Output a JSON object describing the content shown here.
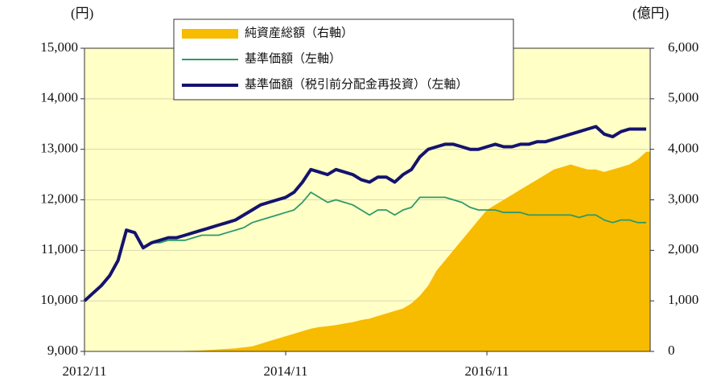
{
  "chart_data": {
    "type": "line",
    "y_axis_title": "(円)",
    "y2_axis_title": "(億円)",
    "x": [
      "2012/11",
      "2012/12",
      "2013/01",
      "2013/02",
      "2013/03",
      "2013/04",
      "2013/05",
      "2013/06",
      "2013/07",
      "2013/08",
      "2013/09",
      "2013/10",
      "2013/11",
      "2013/12",
      "2014/01",
      "2014/02",
      "2014/03",
      "2014/04",
      "2014/05",
      "2014/06",
      "2014/07",
      "2014/08",
      "2014/09",
      "2014/10",
      "2014/11",
      "2014/12",
      "2015/01",
      "2015/02",
      "2015/03",
      "2015/04",
      "2015/05",
      "2015/06",
      "2015/07",
      "2015/08",
      "2015/09",
      "2015/10",
      "2015/11",
      "2015/12",
      "2016/01",
      "2016/02",
      "2016/03",
      "2016/04",
      "2016/05",
      "2016/06",
      "2016/07",
      "2016/08",
      "2016/09",
      "2016/10",
      "2016/11",
      "2016/12",
      "2017/01",
      "2017/02",
      "2017/03",
      "2017/04",
      "2017/05",
      "2017/06",
      "2017/07",
      "2017/08",
      "2017/09",
      "2017/10",
      "2017/11",
      "2017/12",
      "2018/01",
      "2018/02",
      "2018/03",
      "2018/04",
      "2018/05",
      "2018/06"
    ],
    "xticks": [
      "2012/11",
      "2014/11",
      "2016/11"
    ],
    "ylim": [
      9000,
      15000
    ],
    "yticks": [
      {
        "value": 9000,
        "label": "9,000"
      },
      {
        "value": 10000,
        "label": "10,000"
      },
      {
        "value": 11000,
        "label": "11,000"
      },
      {
        "value": 12000,
        "label": "12,000"
      },
      {
        "value": 13000,
        "label": "13,000"
      },
      {
        "value": 14000,
        "label": "14,000"
      },
      {
        "value": 15000,
        "label": "15,000"
      }
    ],
    "y2lim": [
      0,
      6000
    ],
    "y2ticks": [
      0,
      {
        "value": 1000,
        "label": "1,000"
      },
      {
        "value": 2000,
        "label": "2,000"
      },
      {
        "value": 3000,
        "label": "3,000"
      },
      {
        "value": 4000,
        "label": "4,000"
      },
      {
        "value": 5000,
        "label": "5,000"
      },
      {
        "value": 6000,
        "label": "6,000"
      }
    ],
    "grid": true,
    "legend": "top",
    "series": [
      {
        "name": "純資産総額（右軸）",
        "color": "#f7bb00",
        "axis": "y2",
        "kind": "area",
        "values": [
          0,
          0,
          0,
          0,
          0,
          0,
          0,
          0,
          0,
          0,
          0,
          5,
          10,
          15,
          20,
          30,
          40,
          50,
          60,
          80,
          100,
          150,
          200,
          250,
          300,
          350,
          400,
          450,
          480,
          500,
          520,
          550,
          580,
          620,
          650,
          700,
          750,
          800,
          850,
          950,
          1100,
          1300,
          1600,
          1800,
          2000,
          2200,
          2400,
          2600,
          2800,
          2900,
          3000,
          3100,
          3200,
          3300,
          3400,
          3500,
          3600,
          3650,
          3700,
          3650,
          3600,
          3600,
          3550,
          3600,
          3650,
          3700,
          3800,
          3950
        ]
      },
      {
        "name": "基準価額（左軸）",
        "color": "#2e9a6a",
        "kind": "line",
        "values": [
          10000,
          10150,
          10300,
          10500,
          10800,
          11400,
          11350,
          11050,
          11150,
          11150,
          11200,
          11200,
          11200,
          11250,
          11300,
          11300,
          11300,
          11350,
          11400,
          11450,
          11550,
          11600,
          11650,
          11700,
          11750,
          11800,
          11950,
          12150,
          12050,
          11950,
          12000,
          11950,
          11900,
          11800,
          11700,
          11800,
          11800,
          11700,
          11800,
          11850,
          12050,
          12050,
          12050,
          12050,
          12000,
          11950,
          11850,
          11800,
          11800,
          11800,
          11750,
          11750,
          11750,
          11700,
          11700,
          11700,
          11700,
          11700,
          11700,
          11650,
          11700,
          11700,
          11600,
          11550,
          11600,
          11600,
          11550,
          11550
        ]
      },
      {
        "name": "基準価額（税引前分配金再投資）（左軸）",
        "color": "#14136e",
        "kind": "thick",
        "values": [
          10000,
          10150,
          10300,
          10500,
          10800,
          11400,
          11350,
          11050,
          11150,
          11200,
          11250,
          11250,
          11300,
          11350,
          11400,
          11450,
          11500,
          11550,
          11600,
          11700,
          11800,
          11900,
          11950,
          12000,
          12050,
          12150,
          12350,
          12600,
          12550,
          12500,
          12600,
          12550,
          12500,
          12400,
          12350,
          12450,
          12450,
          12350,
          12500,
          12600,
          12850,
          13000,
          13050,
          13100,
          13100,
          13050,
          13000,
          13000,
          13050,
          13100,
          13050,
          13050,
          13100,
          13100,
          13150,
          13150,
          13200,
          13250,
          13300,
          13350,
          13400,
          13450,
          13300,
          13250,
          13350,
          13400,
          13400,
          13400
        ]
      }
    ]
  }
}
